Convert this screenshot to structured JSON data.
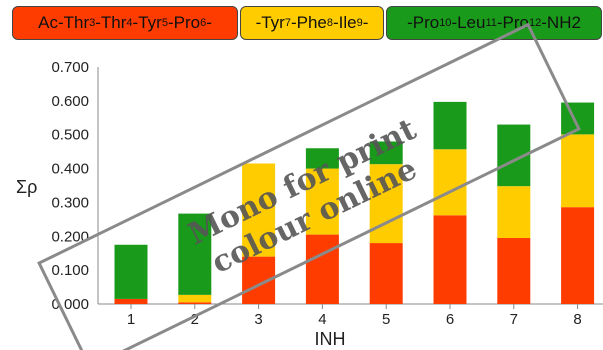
{
  "legend": [
    {
      "parts": [
        [
          "Ac-Thr",
          "3"
        ],
        [
          "-Thr",
          "4"
        ],
        [
          "-Tyr",
          "5"
        ],
        [
          "-Pro",
          "6"
        ],
        [
          "-",
          ""
        ]
      ],
      "color": "#ff3c00"
    },
    {
      "parts": [
        [
          "-Tyr",
          "7"
        ],
        [
          "-Phe",
          "8"
        ],
        [
          "-Ile",
          "9"
        ],
        [
          "-",
          ""
        ]
      ],
      "color": "#ffcc00"
    },
    {
      "parts": [
        [
          "-Pro",
          "10"
        ],
        [
          "-Leu",
          "11"
        ],
        [
          "-Pro",
          "12"
        ],
        [
          "-NH2",
          ""
        ]
      ],
      "color": "#1a9a1a"
    }
  ],
  "watermark": {
    "line1": "Mono for print",
    "line2": "colour online"
  },
  "chart_data": {
    "type": "bar",
    "stacked": true,
    "categories": [
      "1",
      "2",
      "3",
      "4",
      "5",
      "6",
      "7",
      "8"
    ],
    "series": [
      {
        "color": "#ff3c00",
        "values": [
          0.015,
          0.005,
          0.14,
          0.205,
          0.18,
          0.262,
          0.195,
          0.286
        ]
      },
      {
        "color": "#ffcc00",
        "values": [
          0.0,
          0.022,
          0.275,
          0.195,
          0.233,
          0.195,
          0.153,
          0.215
        ]
      },
      {
        "color": "#1a9a1a",
        "values": [
          0.16,
          0.24,
          0.0,
          0.06,
          0.067,
          0.14,
          0.182,
          0.094
        ]
      }
    ],
    "xlabel": "INH",
    "ylabel": "Σρ",
    "ylim": [
      0,
      0.7
    ],
    "yticks": [
      "0.000",
      "0.100",
      "0.200",
      "0.300",
      "0.400",
      "0.500",
      "0.600",
      "0.700"
    ],
    "grid": false
  }
}
